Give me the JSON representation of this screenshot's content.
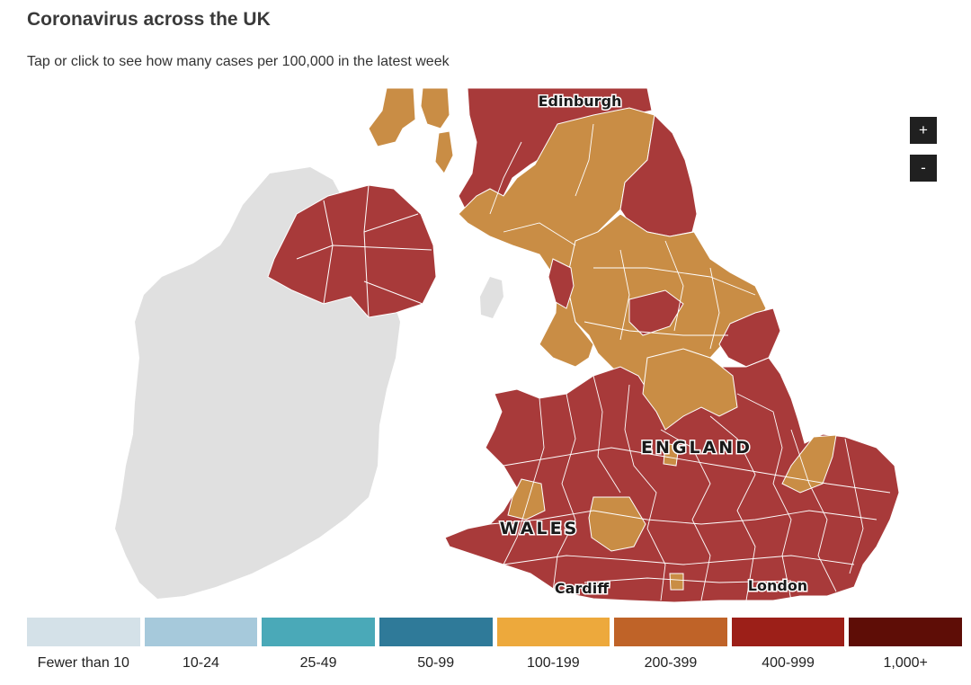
{
  "header": {
    "title": "Coronavirus across the UK",
    "subtitle": "Tap or click to see how many cases per 100,000 in the latest week"
  },
  "map": {
    "labels": {
      "edinburgh": "Edinburgh",
      "england": "ENGLAND",
      "wales": "WALES",
      "cardiff": "Cardiff",
      "london": "London"
    },
    "zoom_in_label": "+",
    "zoom_out_label": "-",
    "colors": {
      "no_data_land": "#e0e0e0",
      "orange_band_100_199": "#c98d45",
      "red_band_400_999": "#a83a3a",
      "boundary": "#ffffff"
    }
  },
  "legend": [
    {
      "label": "Fewer than 10",
      "color": "#d4e1e8"
    },
    {
      "label": "10-24",
      "color": "#a6c9db"
    },
    {
      "label": "25-49",
      "color": "#4aa9b8"
    },
    {
      "label": "50-99",
      "color": "#2f7a99"
    },
    {
      "label": "100-199",
      "color": "#eda93c"
    },
    {
      "label": "200-399",
      "color": "#bf6328"
    },
    {
      "label": "400-999",
      "color": "#9c1f18"
    },
    {
      "label": "1,000+",
      "color": "#5e0d06"
    }
  ]
}
